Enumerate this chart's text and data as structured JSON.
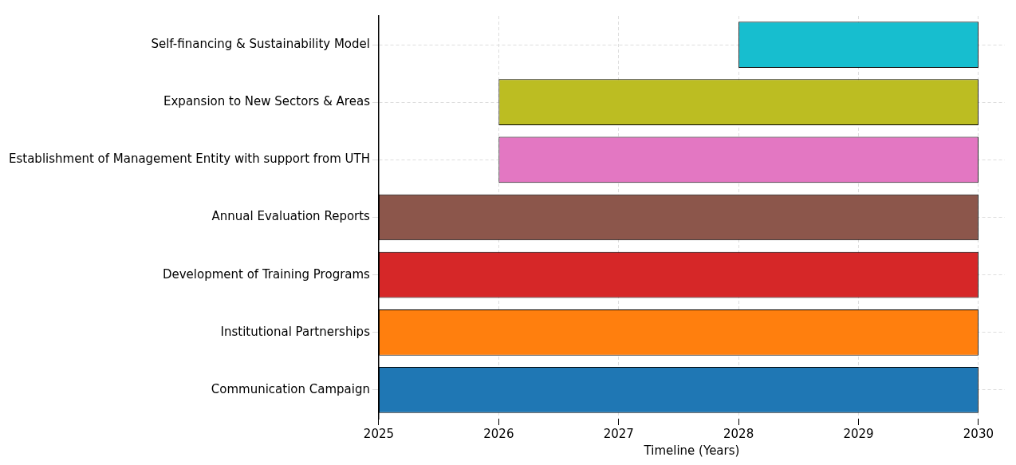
{
  "chart_data": {
    "type": "bar",
    "orientation": "horizontal",
    "xlabel": "Timeline (Years)",
    "categories": [
      "Self-financing & Sustainability Model",
      "Expansion to New Sectors & Areas",
      "Establishment of Management Entity with support from UTH",
      "Annual Evaluation Reports",
      "Development of Training Programs",
      "Institutional Partnerships",
      "Communication Campaign"
    ],
    "base": [
      2028,
      2026,
      2026,
      2025,
      2025,
      2025,
      2025
    ],
    "values": [
      2,
      4,
      4,
      5,
      5,
      5,
      5
    ],
    "colors": [
      "#17becf",
      "#bcbd22",
      "#e377c2",
      "#8c564b",
      "#d62728",
      "#ff7f0e",
      "#1f77b4"
    ],
    "xlim": [
      2025,
      2030.22
    ],
    "xticks": [
      2025,
      2026,
      2027,
      2028,
      2029,
      2030
    ],
    "grid": true,
    "legend": false
  }
}
